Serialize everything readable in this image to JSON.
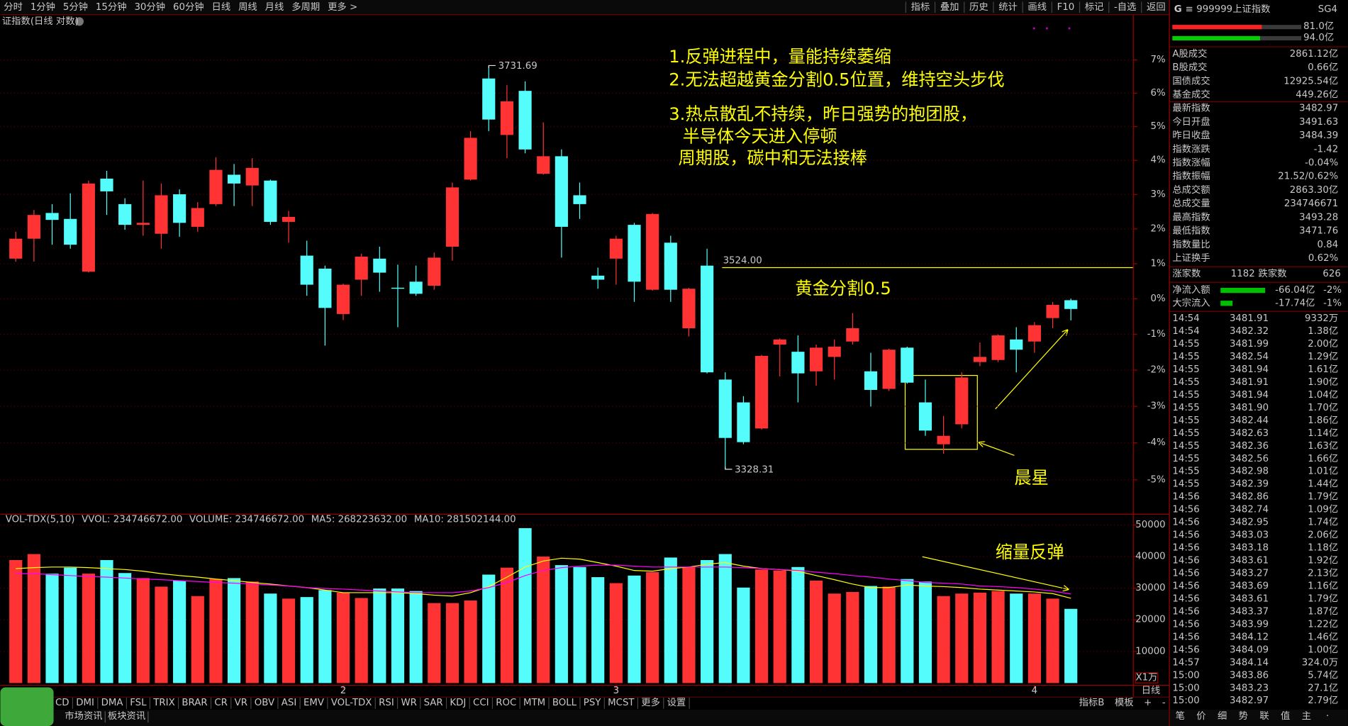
{
  "toolbar": {
    "periods": [
      "分时",
      "1分钟",
      "5分钟",
      "15分钟",
      "30分钟",
      "60分钟",
      "日线",
      "周线",
      "月线",
      "多周期",
      "更多 >"
    ],
    "active_period": 6,
    "tools": [
      "指标",
      "叠加",
      "历史",
      "统计",
      "画线",
      "F10",
      "标记",
      "-自选",
      "返回"
    ]
  },
  "chart_title": "证指数(日线 对数)",
  "annotations": {
    "notes": [
      "1.反弹进程中，量能持续萎缩",
      "2.无法超越黄金分割0.5位置，维持空头步伐",
      "3.热点散乱不持续，昨日强势的抱团股，",
      "半导体今天进入停顿",
      "周期股，碳中和无法接棒"
    ],
    "golden": "黄金分割0.5",
    "morning_star": "晨星",
    "shrink": "缩量反弹"
  },
  "chart_data": [
    {
      "type": "candlestick",
      "categories": [
        null,
        null,
        null,
        null,
        null,
        null,
        null,
        null,
        null,
        null,
        null,
        null,
        null,
        null,
        null,
        null,
        null,
        null,
        "2",
        null,
        null,
        null,
        null,
        null,
        null,
        null,
        null,
        null,
        null,
        null,
        null,
        null,
        null,
        "3",
        null,
        null,
        null,
        null,
        null,
        null,
        null,
        null,
        null,
        null,
        null,
        null,
        null,
        null,
        null,
        null,
        null,
        null,
        null,
        null,
        null,
        null,
        "4",
        null,
        null
      ],
      "open": [
        3533,
        3553,
        3579,
        3573,
        3520,
        3614,
        3588,
        3567,
        3558,
        3598,
        3565,
        3588,
        3618,
        3607,
        3612,
        3570,
        3536,
        3523,
        3478,
        3512,
        3533,
        3504,
        3510,
        3506,
        3545,
        3613,
        3718,
        3659,
        3705,
        3619,
        3637,
        3597,
        3516,
        3533,
        3567,
        3502,
        3549,
        3464,
        3526,
        3414,
        3392,
        3367,
        3448,
        3441,
        3422,
        3436,
        3451,
        3422,
        3405,
        3445,
        3392,
        3352,
        3371,
        3431,
        3433,
        3453,
        3451,
        3474,
        3491.63
      ],
      "high": [
        3560,
        3582,
        3588,
        3599,
        3612,
        3622,
        3594,
        3612,
        3609,
        3603,
        3590,
        3636,
        3629,
        3635,
        3613,
        3581,
        3551,
        3526,
        3508,
        3538,
        3545,
        3527,
        3526,
        3539,
        3610,
        3663,
        3731.69,
        3711,
        3715,
        3672,
        3644,
        3610,
        3524,
        3556,
        3569,
        3579,
        3556,
        3504,
        3543,
        3421,
        3398,
        3438,
        3454,
        3457,
        3448,
        3453,
        3479,
        3440,
        3444,
        3446,
        3414,
        3379,
        3421,
        3450,
        3458,
        3465,
        3470,
        3490,
        3493.28
      ],
      "low": [
        3530,
        3530,
        3547,
        3543,
        3519,
        3577,
        3562,
        3556,
        3543,
        3555,
        3560,
        3586,
        3586,
        3586,
        3567,
        3549,
        3496,
        3447,
        3472,
        3496,
        3500,
        3465,
        3496,
        3502,
        3531,
        3612,
        3663,
        3635,
        3640,
        3618,
        3534,
        3573,
        3503,
        3507,
        3490,
        3501,
        3490,
        3456,
        3420,
        3328.31,
        3352,
        3366,
        3417,
        3392,
        3408,
        3414,
        3448,
        3388,
        3403,
        3410,
        3360,
        3343,
        3367,
        3427,
        3431,
        3421,
        3440,
        3464,
        3471.76
      ],
      "close": [
        3553,
        3577,
        3572,
        3547,
        3609,
        3601,
        3567,
        3569,
        3597,
        3569,
        3584,
        3623,
        3609,
        3625,
        3570,
        3575,
        3507,
        3484,
        3507,
        3535,
        3519,
        3503,
        3498,
        3534,
        3605,
        3656,
        3675,
        3694,
        3644,
        3637,
        3565,
        3588,
        3512,
        3553,
        3510,
        3578,
        3502,
        3503,
        3421,
        3358,
        3354,
        3437,
        3453,
        3420,
        3445,
        3446,
        3464,
        3404,
        3443,
        3411,
        3365,
        3360,
        3416,
        3436,
        3457,
        3443,
        3467,
        3487,
        3482.97
      ],
      "ylim": [
        3286.6,
        3785
      ],
      "log_scale": true,
      "yticks": [
        {
          "value": 3737.51,
          "label": "7%"
        },
        {
          "value": 3702.58,
          "label": "6%"
        },
        {
          "value": 3667.65,
          "label": "5%"
        },
        {
          "value": 3632.72,
          "label": "4%"
        },
        {
          "value": 3597.79,
          "label": "3%"
        },
        {
          "value": 3562.86,
          "label": "2%"
        },
        {
          "value": 3527.93,
          "label": "1%"
        },
        {
          "value": 3493,
          "label": "0%"
        },
        {
          "value": 3458.07,
          "label": "-1%"
        },
        {
          "value": 3423.14,
          "label": "-2%"
        },
        {
          "value": 3388.21,
          "label": "-3%"
        },
        {
          "value": 3353.28,
          "label": "-4%"
        },
        {
          "value": 3318.35,
          "label": "-5%"
        }
      ],
      "grid": true,
      "up_color": "#ff3333",
      "down_color": "#54fcfc",
      "hline": {
        "value": 3524,
        "label": "3524.00",
        "color": "#ffff00"
      }
    },
    {
      "type": "bar",
      "header": [
        {
          "text": "VOL-TDX(5,10)",
          "color": "#c8c8c8"
        },
        {
          "text": "VVOL: 234746672.00",
          "color": "#c8c8c8"
        },
        {
          "text": "VOLUME: 234746672.00",
          "color": "#ffff00"
        },
        {
          "text": "MA5: 268223632.00",
          "color": "#ffff00"
        },
        {
          "text": "MA10: 281502144.00",
          "color": "#ff00ff"
        }
      ],
      "unit": "X1万",
      "volume": [
        38900,
        40800,
        34600,
        36500,
        34600,
        38900,
        34800,
        33200,
        30500,
        32400,
        27500,
        32900,
        33200,
        32100,
        28300,
        26700,
        27200,
        29400,
        28600,
        26900,
        29900,
        29900,
        29100,
        25300,
        25300,
        26100,
        34300,
        36500,
        49000,
        40000,
        37300,
        36700,
        33500,
        31600,
        34000,
        35100,
        39700,
        36700,
        38900,
        40800,
        30200,
        35900,
        35600,
        36700,
        32400,
        28300,
        28800,
        30700,
        30500,
        32900,
        32100,
        27500,
        28300,
        28600,
        29100,
        28300,
        28300,
        26700,
        23474.67
      ],
      "ma5": [
        36200,
        36500,
        36700,
        36700,
        36500,
        36200,
        35900,
        35400,
        34600,
        34000,
        33500,
        32900,
        32400,
        31800,
        31300,
        30700,
        30200,
        29400,
        28600,
        28600,
        28600,
        28600,
        28300,
        27800,
        27500,
        28600,
        30500,
        33500,
        36700,
        38600,
        39500,
        39200,
        38100,
        37000,
        35600,
        35400,
        36200,
        36700,
        37600,
        38100,
        37000,
        36200,
        35900,
        35400,
        34000,
        32700,
        31300,
        30200,
        30200,
        31000,
        30700,
        30500,
        30200,
        29700,
        29400,
        29100,
        28800,
        28300,
        26822.36
      ],
      "ma10": [
        34600,
        34600,
        34300,
        34000,
        33700,
        33500,
        33200,
        32900,
        32700,
        32400,
        32100,
        31800,
        31600,
        31300,
        31000,
        30700,
        30200,
        29900,
        29700,
        29400,
        29100,
        28800,
        28600,
        28600,
        28600,
        29100,
        30200,
        31800,
        34000,
        35600,
        36500,
        37000,
        37300,
        37300,
        37000,
        36700,
        36700,
        36700,
        36700,
        36700,
        36500,
        36200,
        35900,
        35600,
        35100,
        34600,
        34000,
        33500,
        32900,
        32400,
        31800,
        31600,
        31300,
        30700,
        30500,
        30200,
        29700,
        29100,
        28150.21
      ],
      "ma5_color": "#ffff00",
      "ma10_color": "#ff00ff",
      "ylim": [
        0,
        53000
      ],
      "yticks": [
        10000,
        20000,
        30000,
        40000,
        50000
      ],
      "grid": true
    }
  ],
  "quote": {
    "code": "999999",
    "name": "上证指数",
    "badge": "SG4",
    "bars": [
      "81.0亿",
      "94.0亿"
    ],
    "rows": [
      {
        "label": "A股成交",
        "value": "2861.12亿",
        "color": "#ffff00"
      },
      {
        "label": "B股成交",
        "value": "0.66亿",
        "color": "#ffff00"
      },
      {
        "label": "国债成交",
        "value": "12925.54亿",
        "color": "#ffff00"
      },
      {
        "label": "基金成交",
        "value": "449.26亿",
        "color": "#ffff00"
      },
      {
        "label": "最新指数",
        "value": "3482.97",
        "color": "#00e000"
      },
      {
        "label": "今日开盘",
        "value": "3491.63",
        "color": "#ff4040"
      },
      {
        "label": "昨日收盘",
        "value": "3484.39",
        "color": "#e0e0e0"
      },
      {
        "label": "指数涨跌",
        "value": "-1.42",
        "color": "#00e000"
      },
      {
        "label": "指数涨幅",
        "value": "-0.04%",
        "color": "#00e000"
      },
      {
        "label": "指数振幅",
        "value": "21.52/0.62%",
        "color": "#e0e0e0"
      },
      {
        "label": "总成交额",
        "value": "2863.30亿",
        "color": "#ffff00"
      },
      {
        "label": "总成交量",
        "value": "234746671",
        "color": "#ffff00"
      },
      {
        "label": "最高指数",
        "value": "3493.28",
        "color": "#ff4040"
      },
      {
        "label": "最低指数",
        "value": "3471.76",
        "color": "#00e000"
      },
      {
        "label": "指数量比",
        "value": "0.84",
        "color": "#ffff00"
      },
      {
        "label": "上证换手",
        "value": "0.62%",
        "color": "#e0e0e0"
      }
    ],
    "breadth": {
      "up_label": "涨家数",
      "up": "1182",
      "down_label": "跌家数",
      "down": "626"
    },
    "flows": [
      {
        "label": "净流入额",
        "value": "-66.04亿",
        "pct": "-2%"
      },
      {
        "label": "大宗流入",
        "value": "-17.74亿",
        "pct": "-1%"
      }
    ]
  },
  "trades": [
    [
      "14:54",
      "3481.91",
      "9332万"
    ],
    [
      "14:54",
      "3482.32",
      "1.38亿"
    ],
    [
      "14:55",
      "3481.99",
      "2.00亿"
    ],
    [
      "14:55",
      "3482.54",
      "1.29亿"
    ],
    [
      "14:55",
      "3481.94",
      "1.61亿"
    ],
    [
      "14:55",
      "3481.91",
      "1.90亿"
    ],
    [
      "14:55",
      "3481.94",
      "1.04亿"
    ],
    [
      "14:55",
      "3481.90",
      "1.70亿"
    ],
    [
      "14:55",
      "3482.44",
      "1.86亿"
    ],
    [
      "14:55",
      "3482.63",
      "1.14亿"
    ],
    [
      "14:55",
      "3482.36",
      "1.63亿"
    ],
    [
      "14:55",
      "3482.56",
      "1.66亿"
    ],
    [
      "14:55",
      "3482.98",
      "1.01亿"
    ],
    [
      "14:55",
      "3482.39",
      "1.44亿"
    ],
    [
      "14:56",
      "3482.86",
      "1.79亿"
    ],
    [
      "14:56",
      "3482.74",
      "1.09亿"
    ],
    [
      "14:56",
      "3482.95",
      "1.74亿"
    ],
    [
      "14:56",
      "3483.03",
      "2.06亿"
    ],
    [
      "14:56",
      "3483.18",
      "1.18亿"
    ],
    [
      "14:56",
      "3483.61",
      "1.92亿"
    ],
    [
      "14:56",
      "3483.27",
      "2.13亿"
    ],
    [
      "14:56",
      "3483.69",
      "1.16亿"
    ],
    [
      "14:56",
      "3483.61",
      "1.79亿"
    ],
    [
      "14:56",
      "3483.37",
      "1.87亿"
    ],
    [
      "14:56",
      "3483.99",
      "1.22亿"
    ],
    [
      "14:56",
      "3484.12",
      "1.46亿"
    ],
    [
      "14:56",
      "3484.09",
      "1.00亿"
    ],
    [
      "14:57",
      "3484.14",
      "324.0万"
    ],
    [
      "15:00",
      "3483.86",
      "5.74亿"
    ],
    [
      "15:00",
      "3483.23",
      "27.1亿"
    ],
    [
      "15:00",
      "3482.97",
      "2.79亿"
    ]
  ],
  "indicator_tabs": [
    "CD",
    "DMI",
    "DMA",
    "FSL",
    "TRIX",
    "BRAR",
    "CR",
    "VR",
    "OBV",
    "ASI",
    "EMV",
    "VOL-TDX",
    "RSI",
    "WR",
    "SAR",
    "KDJ",
    "CCI",
    "ROC",
    "MTM",
    "BOLL",
    "PSY",
    "MCST",
    "更多",
    "设置"
  ],
  "active_indicator": 11,
  "template_tabs": [
    "指标B",
    "模板",
    "+",
    "-"
  ],
  "period_label": "日线",
  "news_tabs": [
    "市场资讯",
    "板块资讯"
  ],
  "side_tabs": [
    "笔",
    "价",
    "细",
    "势",
    "联",
    "值",
    "主",
    "·"
  ]
}
